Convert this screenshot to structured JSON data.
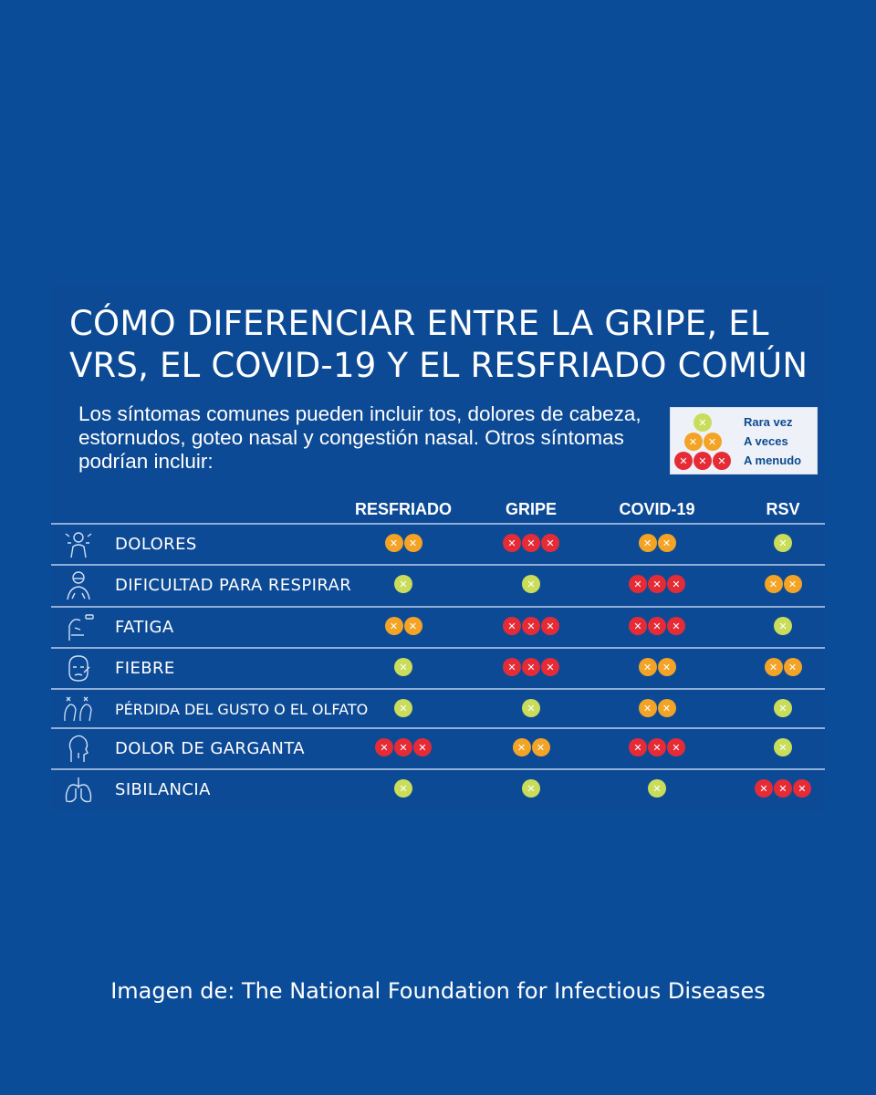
{
  "title": "CÓMO DIFERENCIAR ENTRE LA GRIPE, EL VRS, EL COVID-19 Y EL RESFRIADO COMÚN",
  "intro": "Los síntomas comunes pueden incluir tos, dolores de cabeza, estornudos, goteo nasal y congestión nasal. Otros síntomas podrían incluir:",
  "legend": [
    {
      "count": 1,
      "level": "rare",
      "label": "Rara vez"
    },
    {
      "count": 2,
      "level": "sometimes",
      "label": "A veces"
    },
    {
      "count": 3,
      "level": "often",
      "label": "A menudo"
    }
  ],
  "colors": {
    "rare": "#c9dd5b",
    "sometimes": "#f3a427",
    "often": "#e52b36",
    "background": "#0b4c99"
  },
  "columns": [
    "RESFRIADO",
    "GRIPE",
    "COVID-19",
    "RSV"
  ],
  "rows": [
    {
      "icon": "aches-icon",
      "label": "DOLORES",
      "values": [
        2,
        3,
        2,
        1
      ]
    },
    {
      "icon": "breathing-difficulty-icon",
      "label": "DIFICULTAD PARA RESPIRAR",
      "values": [
        1,
        1,
        3,
        2
      ]
    },
    {
      "icon": "fatigue-icon",
      "label": "FATIGA",
      "values": [
        2,
        3,
        3,
        1
      ]
    },
    {
      "icon": "fever-icon",
      "label": "FIEBRE",
      "values": [
        1,
        3,
        2,
        2
      ]
    },
    {
      "icon": "loss-of-taste-smell-icon",
      "label": "PÉRDIDA DEL GUSTO O EL OLFATO",
      "values": [
        1,
        1,
        2,
        1
      ]
    },
    {
      "icon": "sore-throat-icon",
      "label": "DOLOR DE GARGANTA",
      "values": [
        3,
        2,
        3,
        1
      ]
    },
    {
      "icon": "lungs-icon",
      "label": "SIBILANCIA",
      "values": [
        1,
        1,
        1,
        3
      ]
    }
  ],
  "credit": "Imagen de: The National Foundation for Infectious Diseases"
}
